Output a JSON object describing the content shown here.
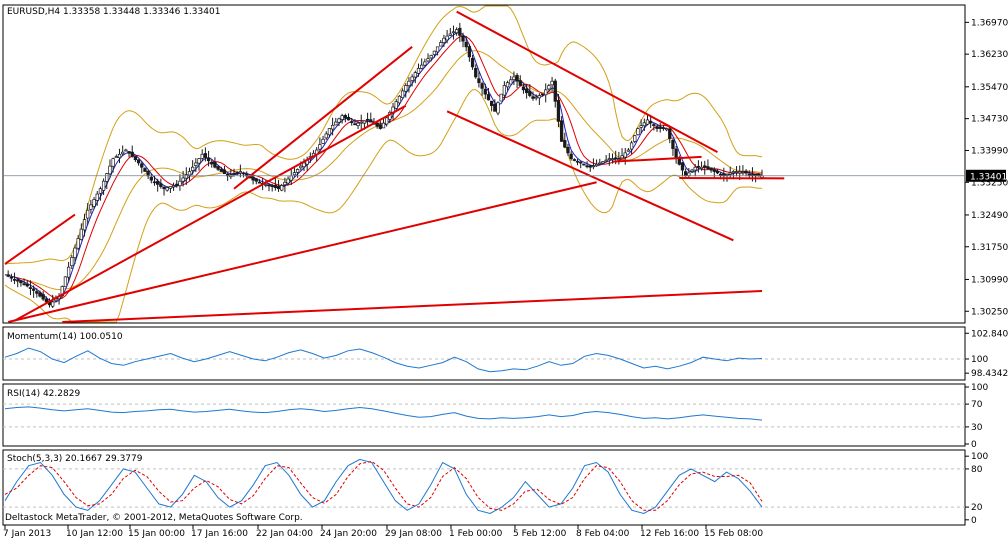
{
  "colors": {
    "background": "#ffffff",
    "frame": "#000000",
    "grid": "#c0c0c0",
    "candle": "#1a1a1a",
    "trendline": "#e00000",
    "ma_fast": "#2020c0",
    "ma_slow": "#e00000",
    "bollinger": "#d4a017",
    "indicator_line": "#1e78d2",
    "stoch_signal": "#e00000",
    "current_price_bg": "#000000",
    "current_price_fg": "#ffffff"
  },
  "chart_data": [
    {
      "type": "candlestick",
      "title": "EURUSD,H4  1.33358 1.33448 1.33346 1.33401",
      "ylim": [
        1.3,
        1.3735
      ],
      "ticks": [
        "1.36970",
        "1.36230",
        "1.35470",
        "1.34730",
        "1.33990",
        "1.33250",
        "1.32490",
        "1.31750",
        "1.30990",
        "1.30250"
      ],
      "tick_values": [
        1.3697,
        1.3623,
        1.3547,
        1.3473,
        1.3399,
        1.3325,
        1.3249,
        1.3175,
        1.3099,
        1.3025
      ],
      "current_price": "1.33401",
      "current_value": 1.33401,
      "close_path": [
        [
          0,
          1.311
        ],
        [
          8,
          1.308
        ],
        [
          14,
          1.304
        ],
        [
          17,
          1.306
        ],
        [
          21,
          1.315
        ],
        [
          26,
          1.326
        ],
        [
          30,
          1.331
        ],
        [
          34,
          1.338
        ],
        [
          38,
          1.34
        ],
        [
          42,
          1.337
        ],
        [
          46,
          1.333
        ],
        [
          50,
          1.331
        ],
        [
          54,
          1.332
        ],
        [
          58,
          1.335
        ],
        [
          62,
          1.339
        ],
        [
          66,
          1.336
        ],
        [
          70,
          1.334
        ],
        [
          74,
          1.335
        ],
        [
          78,
          1.333
        ],
        [
          82,
          1.332
        ],
        [
          86,
          1.331
        ],
        [
          90,
          1.334
        ],
        [
          94,
          1.337
        ],
        [
          98,
          1.34
        ],
        [
          102,
          1.345
        ],
        [
          106,
          1.348
        ],
        [
          110,
          1.346
        ],
        [
          114,
          1.347
        ],
        [
          118,
          1.345
        ],
        [
          122,
          1.35
        ],
        [
          126,
          1.355
        ],
        [
          130,
          1.359
        ],
        [
          134,
          1.362
        ],
        [
          138,
          1.366
        ],
        [
          142,
          1.368
        ],
        [
          145,
          1.364
        ],
        [
          148,
          1.357
        ],
        [
          151,
          1.353
        ],
        [
          154,
          1.349
        ],
        [
          157,
          1.355
        ],
        [
          160,
          1.357
        ],
        [
          163,
          1.354
        ],
        [
          166,
          1.352
        ],
        [
          169,
          1.353
        ],
        [
          172,
          1.356
        ],
        [
          175,
          1.342
        ],
        [
          178,
          1.338
        ],
        [
          181,
          1.337
        ],
        [
          184,
          1.336
        ],
        [
          187,
          1.337
        ],
        [
          190,
          1.338
        ],
        [
          193,
          1.338
        ],
        [
          196,
          1.34
        ],
        [
          199,
          1.345
        ],
        [
          202,
          1.347
        ],
        [
          205,
          1.345
        ],
        [
          208,
          1.345
        ],
        [
          211,
          1.338
        ],
        [
          214,
          1.334
        ],
        [
          217,
          1.336
        ],
        [
          220,
          1.336
        ],
        [
          223,
          1.335
        ],
        [
          226,
          1.334
        ],
        [
          229,
          1.335
        ],
        [
          232,
          1.335
        ],
        [
          235,
          1.334
        ],
        [
          238,
          1.334
        ]
      ]
    },
    {
      "type": "line",
      "title": "Momentum(14) 100.0510",
      "ylim": [
        97.9,
        103.2
      ],
      "ticks": [
        "102.8405",
        "100",
        "98.4342"
      ],
      "tick_values": [
        102.8405,
        100,
        98.4342
      ],
      "dashed_levels": [
        100
      ],
      "values": [
        100.2,
        100.6,
        101.2,
        100.8,
        100.0,
        99.6,
        100.3,
        100.9,
        100.1,
        99.5,
        99.3,
        99.7,
        100.0,
        100.3,
        100.6,
        100.1,
        99.7,
        100.0,
        100.4,
        100.8,
        100.4,
        100.0,
        99.8,
        100.2,
        100.7,
        101.0,
        100.6,
        100.1,
        100.4,
        100.9,
        101.1,
        100.7,
        100.2,
        99.6,
        99.2,
        99.0,
        99.3,
        99.6,
        100.2,
        99.7,
        98.9,
        98.6,
        98.7,
        98.9,
        98.8,
        99.2,
        99.7,
        99.3,
        99.5,
        100.3,
        100.6,
        100.4,
        100.0,
        99.5,
        99.0,
        99.2,
        98.9,
        99.2,
        99.6,
        100.2,
        100.0,
        99.8,
        100.1,
        100.0,
        100.05
      ]
    },
    {
      "type": "line",
      "title": "RSI(14) 42.2829",
      "ylim": [
        0,
        100
      ],
      "ticks": [
        "100",
        "70",
        "30",
        "0"
      ],
      "tick_values": [
        100,
        70,
        30,
        0
      ],
      "dashed_levels": [
        70,
        30
      ],
      "values": [
        62,
        64,
        65,
        63,
        60,
        58,
        60,
        62,
        59,
        56,
        55,
        57,
        58,
        60,
        61,
        58,
        56,
        57,
        59,
        61,
        58,
        56,
        55,
        57,
        60,
        62,
        60,
        57,
        59,
        62,
        64,
        62,
        58,
        54,
        50,
        47,
        48,
        52,
        55,
        49,
        45,
        44,
        46,
        45,
        46,
        48,
        51,
        48,
        50,
        55,
        57,
        55,
        52,
        48,
        45,
        46,
        44,
        46,
        49,
        51,
        49,
        47,
        45,
        44,
        42
      ]
    },
    {
      "type": "line",
      "title": "Stoch(5,3,3) 20.1667 29.3779",
      "ylim": [
        -5,
        105
      ],
      "ticks": [
        "100",
        "80",
        "20",
        "0"
      ],
      "tick_values": [
        100,
        80,
        20,
        0
      ],
      "dashed_levels": [
        80,
        20
      ],
      "series": [
        {
          "name": "main",
          "values": [
            30,
            60,
            85,
            90,
            70,
            40,
            20,
            15,
            30,
            55,
            80,
            75,
            50,
            25,
            20,
            40,
            70,
            60,
            35,
            20,
            30,
            55,
            85,
            90,
            70,
            40,
            20,
            30,
            60,
            85,
            95,
            90,
            60,
            30,
            15,
            25,
            55,
            90,
            80,
            40,
            15,
            10,
            20,
            35,
            60,
            40,
            20,
            25,
            50,
            85,
            90,
            75,
            40,
            15,
            10,
            20,
            45,
            70,
            80,
            70,
            60,
            75,
            65,
            45,
            20
          ]
        },
        {
          "name": "signal",
          "values": [
            40,
            50,
            70,
            85,
            82,
            60,
            35,
            22,
            25,
            40,
            65,
            78,
            68,
            45,
            28,
            30,
            50,
            62,
            52,
            32,
            25,
            38,
            65,
            85,
            82,
            58,
            35,
            26,
            40,
            68,
            88,
            92,
            78,
            50,
            25,
            20,
            35,
            68,
            82,
            65,
            35,
            18,
            15,
            25,
            45,
            48,
            32,
            24,
            35,
            65,
            85,
            82,
            60,
            30,
            15,
            15,
            30,
            55,
            72,
            75,
            68,
            68,
            70,
            58,
            29
          ]
        }
      ]
    }
  ],
  "x_ticks": [
    "7 Jan 2013",
    "10 Jan 12:00",
    "15 Jan 00:00",
    "17 Jan 16:00",
    "22 Jan 04:00",
    "24 Jan 20:00",
    "29 Jan 08:00",
    "1 Feb 00:00",
    "5 Feb 12:00",
    "8 Feb 04:00",
    "12 Feb 16:00",
    "15 Feb 08:00"
  ],
  "footer": "Deltastock MetaTrader, © 2001-2012, MetaQuotes Software Corp."
}
